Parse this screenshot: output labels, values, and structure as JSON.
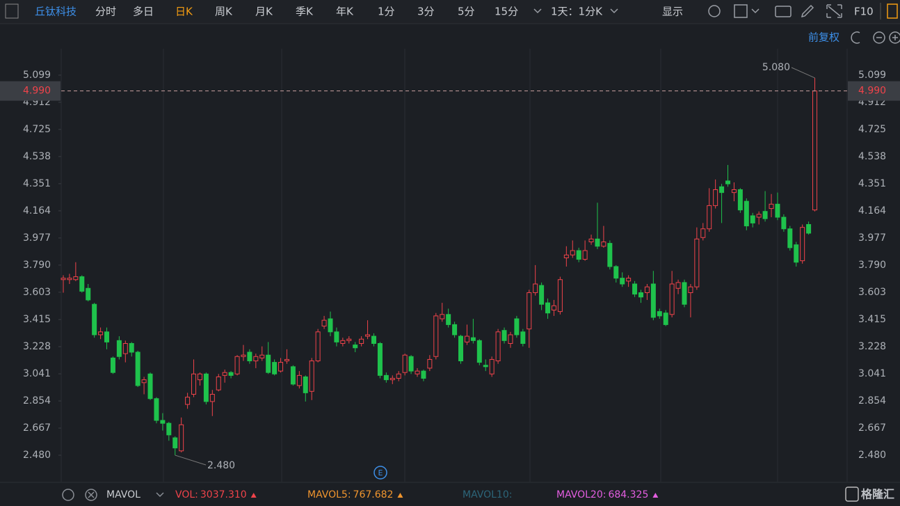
{
  "toolbar": {
    "stock": "丘钛科技",
    "periods": [
      "分时",
      "多日",
      "日K",
      "周K",
      "月K",
      "季K",
      "年K",
      "1分",
      "3分",
      "5分",
      "15分"
    ],
    "active_period": 2,
    "interval": "1天：1分K",
    "display": "显示",
    "f10": "F10",
    "adjust": "前复权"
  },
  "chart_data": {
    "type": "candlestick",
    "open": [
      3.69,
      3.69,
      3.69,
      3.71,
      3.63,
      3.52,
      3.31,
      3.33,
      3.15,
      3.27,
      3.18,
      3.25,
      3.19,
      2.98,
      3.04,
      2.87,
      2.72,
      2.7,
      2.6,
      2.51,
      2.83,
      2.9,
      3.0,
      3.04,
      2.85,
      2.93,
      3.03,
      3.05,
      3.04,
      3.16,
      3.19,
      3.13,
      3.15,
      3.17,
      3.12,
      3.06,
      3.13,
      3.09,
      2.96,
      3.02,
      2.92,
      3.13,
      3.37,
      3.42,
      3.33,
      3.25,
      3.27,
      3.24,
      3.25,
      3.3,
      3.3,
      3.25,
      3.03,
      3.0,
      3.01,
      3.05,
      3.16,
      3.04,
      3.06,
      3.08,
      3.16,
      3.42,
      3.45,
      3.38,
      3.3,
      3.26,
      3.29,
      3.27,
      3.1,
      3.04,
      3.13,
      3.34,
      3.25,
      3.42,
      3.33,
      3.35,
      3.6,
      3.65,
      3.53,
      3.48,
      3.47,
      3.84,
      3.86,
      3.89,
      3.83,
      3.95,
      3.97,
      3.92,
      3.94,
      3.78,
      3.7,
      3.68,
      3.66,
      3.6,
      3.6,
      3.66,
      3.47,
      3.46,
      3.45,
      3.63,
      3.67,
      3.6,
      3.64,
      3.98,
      4.04,
      4.2,
      4.33,
      4.37,
      4.29,
      4.31,
      4.23,
      4.13,
      4.12,
      4.16,
      4.18,
      4.21,
      4.12,
      4.04,
      3.93,
      3.82,
      4.07,
      4.17
    ],
    "high": [
      3.72,
      3.73,
      3.81,
      3.72,
      3.66,
      3.53,
      3.36,
      3.36,
      3.16,
      3.3,
      3.27,
      3.26,
      3.2,
      3.02,
      3.05,
      2.88,
      2.77,
      2.71,
      2.61,
      2.74,
      2.91,
      3.14,
      3.05,
      3.05,
      2.93,
      3.04,
      3.07,
      3.06,
      3.17,
      3.24,
      3.21,
      3.18,
      3.23,
      3.26,
      3.14,
      3.15,
      3.21,
      3.1,
      3.06,
      3.03,
      3.15,
      3.35,
      3.44,
      3.47,
      3.36,
      3.29,
      3.3,
      3.26,
      3.3,
      3.41,
      3.32,
      3.26,
      3.05,
      3.03,
      3.06,
      3.18,
      3.17,
      3.08,
      3.07,
      3.17,
      3.46,
      3.53,
      3.49,
      3.4,
      3.31,
      3.38,
      3.42,
      3.28,
      3.14,
      3.16,
      3.35,
      3.36,
      3.33,
      3.44,
      3.35,
      3.62,
      3.79,
      3.67,
      3.56,
      3.55,
      3.71,
      3.92,
      3.96,
      3.91,
      3.96,
      4.0,
      4.22,
      4.06,
      3.96,
      3.79,
      3.74,
      3.72,
      3.68,
      3.62,
      3.66,
      3.75,
      3.49,
      3.48,
      3.75,
      3.69,
      3.69,
      3.66,
      4.05,
      4.08,
      4.32,
      4.38,
      4.35,
      4.48,
      4.36,
      4.32,
      4.25,
      4.15,
      4.16,
      4.3,
      4.28,
      4.29,
      4.14,
      4.06,
      3.95,
      4.07,
      4.09,
      5.08
    ],
    "low": [
      3.6,
      3.66,
      3.68,
      3.6,
      3.54,
      3.29,
      3.28,
      3.21,
      3.04,
      3.14,
      3.12,
      3.16,
      2.95,
      2.9,
      2.86,
      2.7,
      2.65,
      2.58,
      2.48,
      2.5,
      2.8,
      2.88,
      2.96,
      2.83,
      2.75,
      2.92,
      2.98,
      3.01,
      3.03,
      3.13,
      3.11,
      3.08,
      3.13,
      3.04,
      3.03,
      3.05,
      3.11,
      2.96,
      2.94,
      2.85,
      2.86,
      3.12,
      3.35,
      3.3,
      3.23,
      3.23,
      3.25,
      3.19,
      3.23,
      3.28,
      3.23,
      3.01,
      2.98,
      2.97,
      2.99,
      3.03,
      3.04,
      3.02,
      2.99,
      3.06,
      3.14,
      3.4,
      3.36,
      3.29,
      3.11,
      3.24,
      3.25,
      3.1,
      3.06,
      3.02,
      3.11,
      3.25,
      3.22,
      3.29,
      3.23,
      3.22,
      3.58,
      3.48,
      3.42,
      3.44,
      3.45,
      3.78,
      3.84,
      3.81,
      3.82,
      3.93,
      3.9,
      3.91,
      3.76,
      3.67,
      3.64,
      3.64,
      3.57,
      3.53,
      3.55,
      3.41,
      3.42,
      3.37,
      3.43,
      3.59,
      3.5,
      3.43,
      3.62,
      3.96,
      4.02,
      4.18,
      4.08,
      4.33,
      4.23,
      4.15,
      4.03,
      4.05,
      4.07,
      4.09,
      4.12,
      4.1,
      4.02,
      3.89,
      3.78,
      3.8,
      4.0,
      4.16
    ],
    "close": [
      3.7,
      3.7,
      3.71,
      3.61,
      3.55,
      3.31,
      3.33,
      3.26,
      3.05,
      3.16,
      3.25,
      3.19,
      2.96,
      3.0,
      2.87,
      2.72,
      2.7,
      2.62,
      2.53,
      2.69,
      2.88,
      3.04,
      3.04,
      2.85,
      2.9,
      3.02,
      3.05,
      3.03,
      3.16,
      3.17,
      3.13,
      3.16,
      3.17,
      3.05,
      3.04,
      3.12,
      3.14,
      2.97,
      3.03,
      2.91,
      3.13,
      3.33,
      3.41,
      3.33,
      3.26,
      3.27,
      3.28,
      3.22,
      3.28,
      3.31,
      3.25,
      3.03,
      3.0,
      3.01,
      3.04,
      3.17,
      3.06,
      3.06,
      3.01,
      3.14,
      3.44,
      3.45,
      3.38,
      3.31,
      3.13,
      3.3,
      3.27,
      3.12,
      3.09,
      3.14,
      3.33,
      3.27,
      3.31,
      3.31,
      3.25,
      3.6,
      3.66,
      3.52,
      3.46,
      3.51,
      3.69,
      3.86,
      3.89,
      3.83,
      3.89,
      3.97,
      3.92,
      3.95,
      3.78,
      3.7,
      3.66,
      3.7,
      3.59,
      3.57,
      3.64,
      3.43,
      3.44,
      3.38,
      3.66,
      3.67,
      3.52,
      3.64,
      3.97,
      4.04,
      4.2,
      4.31,
      4.29,
      4.35,
      4.31,
      4.17,
      4.06,
      4.08,
      4.14,
      4.11,
      4.21,
      4.12,
      4.04,
      3.91,
      3.81,
      4.05,
      4.01,
      4.99
    ],
    "up_color": "#f0434a",
    "down_color": "#1fc24c",
    "ylim": [
      2.298,
      5.281
    ],
    "yticks": [
      5.099,
      4.912,
      4.725,
      4.538,
      4.351,
      4.164,
      3.977,
      {
        "value": 3.79,
        "label": "3.790"
      },
      3.603,
      3.415,
      3.228,
      3.041,
      2.854,
      2.667,
      {
        "value": 2.48,
        "label": "2.480"
      }
    ],
    "current_price": {
      "value": 4.99,
      "label": "4.990"
    },
    "max_label": {
      "value": 5.08,
      "label": "5.080"
    },
    "min_label": {
      "value": 2.48,
      "label": "2.480"
    }
  },
  "indicator_bar": {
    "name": "MAVOL",
    "items": [
      {
        "label": "VOL:",
        "value": "3037.310",
        "color": "#f0434a"
      },
      {
        "label": "MAVOL5:",
        "value": "767.682",
        "color": "#f0952e"
      },
      {
        "label": "MAVOL10:",
        "color": "#2c6579"
      },
      {
        "label": "MAVOL20:",
        "value": "684.325",
        "color": "#e35ee0"
      }
    ]
  },
  "watermark": "格隆汇"
}
